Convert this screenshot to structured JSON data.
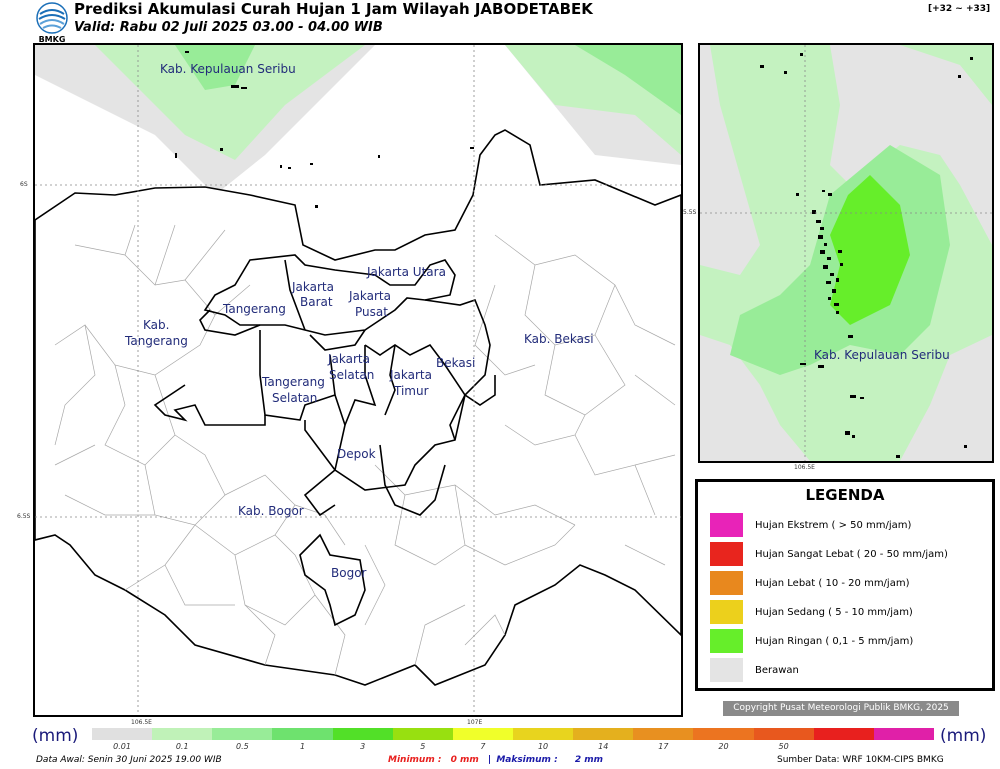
{
  "header": {
    "logo_text": "BMKG",
    "title": "Prediksi Akumulasi Curah Hujan 1 Jam Wilayah JABODETABEK",
    "valid": "Valid: Rabu 02 Juli 2025 03.00 - 04.00 WIB",
    "hours": "[+32 ~ +33]"
  },
  "main_map": {
    "places": {
      "kepulauan_seribu": "Kab. Kepulauan Seribu",
      "jakarta_utara": "Jakarta Utara",
      "jakarta_barat_1": "Jakarta",
      "jakarta_barat_2": "Barat",
      "jakarta_pusat_1": "Jakarta",
      "jakarta_pusat_2": "Pusat",
      "tangerang": "Tangerang",
      "kab_tangerang_1": "Kab.",
      "kab_tangerang_2": "Tangerang",
      "jakarta_selatan_1": "Jakarta",
      "jakarta_selatan_2": "Selatan",
      "jakarta_timur_1": "Jakarta",
      "jakarta_timur_2": "Timur",
      "bekasi": "Bekasi",
      "kab_bekasi": "Kab. Bekasi",
      "tangerang_selatan_1": "Tangerang",
      "tangerang_selatan_2": "Selatan",
      "depok": "Depok",
      "kab_bogor": "Kab. Bogor",
      "bogor": "Bogor"
    },
    "lat_labels": [
      "6S",
      "6.5S"
    ],
    "lon_labels": [
      "106.5E",
      "107E"
    ]
  },
  "inset_map": {
    "place": "Kab. Kepulauan Seribu",
    "lat_label": "5.5S",
    "lon_label": "106.5E"
  },
  "legend": {
    "title": "LEGENDA",
    "items": [
      {
        "label": "Hujan Ekstrem ( > 50 mm/jam)",
        "color": "#e823b8"
      },
      {
        "label": "Hujan Sangat Lebat ( 20 - 50 mm/jam)",
        "color": "#e8251e"
      },
      {
        "label": "Hujan Lebat ( 10 - 20 mm/jam)",
        "color": "#e8881e"
      },
      {
        "label": "Hujan Sedang ( 5 - 10 mm/jam)",
        "color": "#ecd01c"
      },
      {
        "label": "Hujan Ringan ( 0,1 - 5 mm/jam)",
        "color": "#66ee2a"
      },
      {
        "label": "Berawan",
        "color": "#e4e4e4"
      }
    ]
  },
  "copyright": "Copyright Pusat Meteorologi Publik BMKG, 2025",
  "scale": {
    "unit": "(mm)",
    "colors": [
      "#e0e0e0",
      "#c0f2b8",
      "#98ec98",
      "#6ee26e",
      "#52e028",
      "#98e010",
      "#f0ff2a",
      "#e8d41e",
      "#e4b01e",
      "#e89020",
      "#ec7420",
      "#e8581e",
      "#e8201e",
      "#e020a8"
    ],
    "ticks": [
      "0.01",
      "0.1",
      "0.5",
      "1",
      "3",
      "5",
      "7",
      "10",
      "14",
      "17",
      "20",
      "50"
    ]
  },
  "footer": {
    "data_awal": "Data Awal: Senin 30 Juni 2025 19.00 WIB",
    "minimum_label": "Minimum :",
    "minimum_value": "0 mm",
    "separator": "|",
    "maksimum_label": "Maksimum :",
    "maksimum_value": "2 mm",
    "source": "Sumber Data: WRF 10KM-CIPS BMKG"
  },
  "colors": {
    "cloud_gray": "#e4e4e4",
    "light_green": "#c4f2c0",
    "mid_green": "#98ec98",
    "bright_green": "#66ee2a",
    "label_blue": "#222c7a"
  }
}
